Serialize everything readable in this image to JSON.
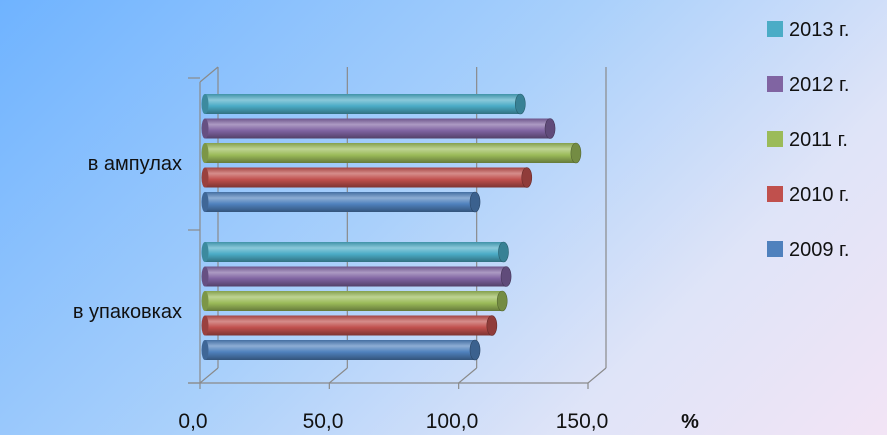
{
  "chart_data": {
    "type": "bar",
    "orientation": "horizontal",
    "style": "3d-cylinder",
    "categories": [
      "в ампулах",
      "в упаковках"
    ],
    "series": [
      {
        "name": "2013 г.",
        "color": "#4bacc6",
        "values": [
          120.0,
          113.5
        ]
      },
      {
        "name": "2012 г.",
        "color": "#8064a2",
        "values": [
          131.5,
          114.5
        ]
      },
      {
        "name": "2011 г.",
        "color": "#9bbb59",
        "values": [
          141.5,
          113.0
        ]
      },
      {
        "name": "2010 г.",
        "color": "#c0504d",
        "values": [
          122.5,
          109.0
        ]
      },
      {
        "name": "2009 г.",
        "color": "#4f81bd",
        "values": [
          102.5,
          102.5
        ]
      }
    ],
    "xlim": [
      0,
      150
    ],
    "xticks": [
      "0,0",
      "50,0",
      "100,0",
      "150,0"
    ],
    "xunit": "%",
    "grid": true,
    "legend_position": "right"
  }
}
